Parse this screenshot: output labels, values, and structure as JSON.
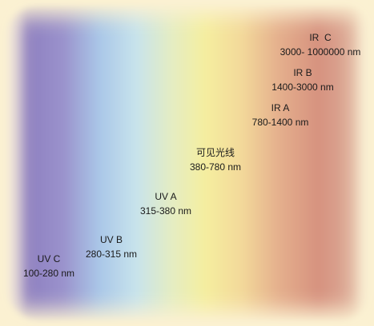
{
  "bands": [
    {
      "id": "uvc",
      "name": "UV C",
      "range": "100-280 nm"
    },
    {
      "id": "uvb",
      "name": "UV B",
      "range": "280-315 nm"
    },
    {
      "id": "uva",
      "name": "UV A",
      "range": "315-380 nm"
    },
    {
      "id": "visible",
      "name": "可见光线",
      "range": "380-780 nm"
    },
    {
      "id": "ira",
      "name": "IR A",
      "range": "780-1400 nm"
    },
    {
      "id": "irb",
      "name": "IR B",
      "range": "1400-3000 nm"
    },
    {
      "id": "irc",
      "name": "IR  C",
      "range": "3000- 1000000 nm"
    }
  ]
}
